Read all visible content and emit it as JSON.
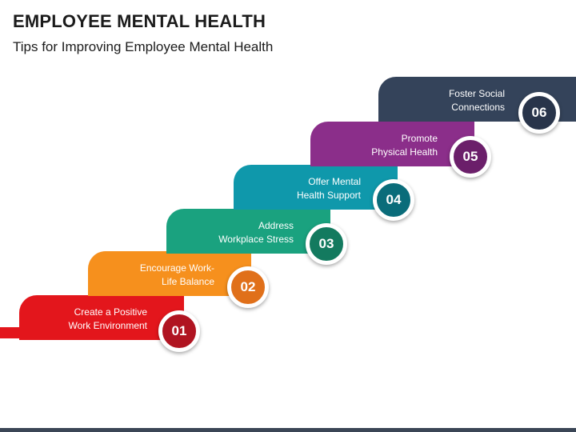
{
  "header": {
    "title": "EMPLOYEE MENTAL HEALTH",
    "subtitle": "Tips for Improving Employee Mental Health"
  },
  "steps": [
    {
      "number": "01",
      "label": "Create a Positive\nWork Environment",
      "color": "#e3161c",
      "badge_color": "#b01421"
    },
    {
      "number": "02",
      "label": "Encourage Work-\nLife Balance",
      "color": "#f6901d",
      "badge_color": "#e0701a"
    },
    {
      "number": "03",
      "label": "Address\nWorkplace Stress",
      "color": "#1aa27f",
      "badge_color": "#137a5f"
    },
    {
      "number": "04",
      "label": "Offer Mental\nHealth Support",
      "color": "#0f98ab",
      "badge_color": "#0a6c7a"
    },
    {
      "number": "05",
      "label": "Promote\nPhysical Health",
      "color": "#8b2e8a",
      "badge_color": "#6b1f6a"
    },
    {
      "number": "06",
      "label": "Foster Social\nConnections",
      "color": "#34435a",
      "badge_color": "#28344a"
    }
  ]
}
